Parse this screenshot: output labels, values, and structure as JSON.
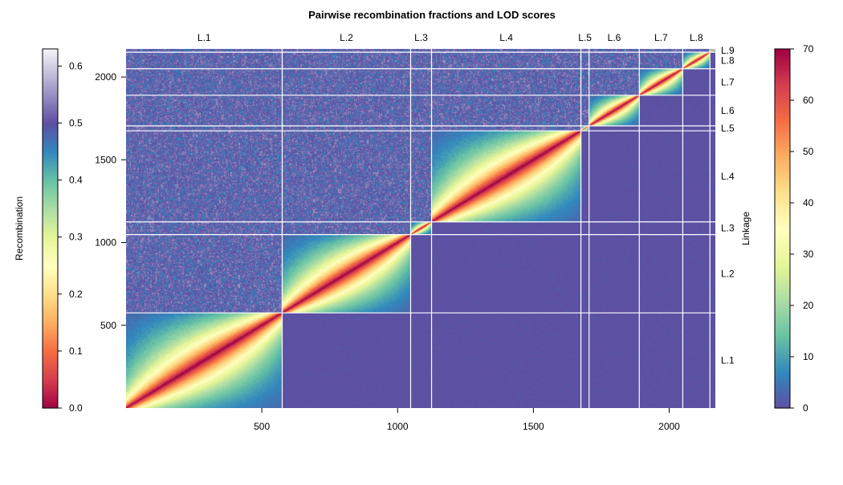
{
  "chart_data": {
    "type": "heatmap",
    "title": "Pairwise recombination fractions and LOD scores",
    "x_ticks": [
      500,
      1000,
      1500,
      2000
    ],
    "y_ticks": [
      500,
      1000,
      1500,
      2000
    ],
    "xlim": [
      0,
      2170
    ],
    "ylim": [
      0,
      2170
    ],
    "linkage_groups": [
      {
        "name": "L.1",
        "start": 0,
        "end": 575
      },
      {
        "name": "L.2",
        "start": 575,
        "end": 1048
      },
      {
        "name": "L.3",
        "start": 1048,
        "end": 1125
      },
      {
        "name": "L.4",
        "start": 1125,
        "end": 1675
      },
      {
        "name": "L.5",
        "start": 1675,
        "end": 1705
      },
      {
        "name": "L.6",
        "start": 1705,
        "end": 1890
      },
      {
        "name": "L.7",
        "start": 1890,
        "end": 2050
      },
      {
        "name": "L.8",
        "start": 2050,
        "end": 2150
      },
      {
        "name": "L.9",
        "start": 2150,
        "end": 2170
      }
    ],
    "upper_triangle": "Recombination fraction",
    "lower_triangle": "LOD score",
    "left_colorbar": {
      "label": "Recombination",
      "range": [
        0.0,
        0.63
      ],
      "ticks": [
        "0.0",
        "0.1",
        "0.2",
        "0.3",
        "0.4",
        "0.5",
        "0.6"
      ],
      "tick_values": [
        0.0,
        0.1,
        0.2,
        0.3,
        0.4,
        0.5,
        0.6
      ]
    },
    "right_colorbar": {
      "label": "Linkage",
      "range": [
        0,
        70
      ],
      "ticks": [
        "0",
        "10",
        "20",
        "30",
        "40",
        "50",
        "60",
        "70"
      ],
      "tick_values": [
        0,
        10,
        20,
        30,
        40,
        50,
        60,
        70
      ]
    },
    "colors": {
      "palette": [
        "#9e0142",
        "#d53e4f",
        "#f46d43",
        "#fdae61",
        "#fee08b",
        "#ffffbf",
        "#e6f598",
        "#abdda4",
        "#66c2a5",
        "#3288bd",
        "#5e4fa2"
      ],
      "light_end": "#f5f5f7",
      "background": "#5e4fa2",
      "group_separator": "#ffffff"
    }
  }
}
